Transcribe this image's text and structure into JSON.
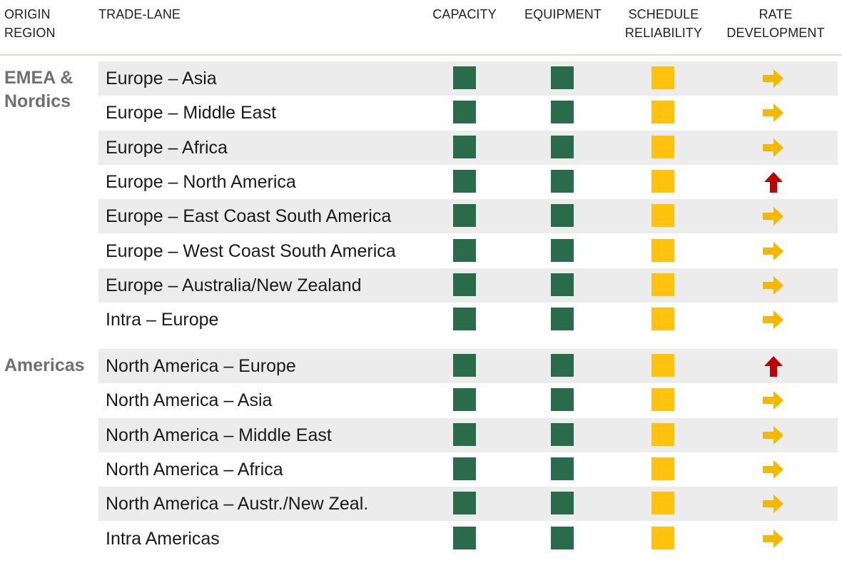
{
  "header": {
    "origin_region": "ORIGIN\nREGION",
    "trade_lane": "TRADE-LANE",
    "capacity": "CAPACITY",
    "equipment": "EQUIPMENT",
    "schedule_reliability": "SCHEDULE\nRELIABILITY",
    "rate_development": "RATE\nDEVELOPMENT"
  },
  "colors": {
    "green": "#2a6b4c",
    "amber": "#ffc20e",
    "arrow_right": "#f5b800",
    "arrow_up": "#c00000",
    "row_shade": "#ececec"
  },
  "groups": [
    {
      "region": "EMEA &\nNordics",
      "rows": [
        {
          "lane": "Europe – Asia",
          "capacity": "green",
          "equipment": "green",
          "schedule_reliability": "amber",
          "rate_development": "right"
        },
        {
          "lane": "Europe – Middle East",
          "capacity": "green",
          "equipment": "green",
          "schedule_reliability": "amber",
          "rate_development": "right"
        },
        {
          "lane": "Europe – Africa",
          "capacity": "green",
          "equipment": "green",
          "schedule_reliability": "amber",
          "rate_development": "right"
        },
        {
          "lane": "Europe – North America",
          "capacity": "green",
          "equipment": "green",
          "schedule_reliability": "amber",
          "rate_development": "up"
        },
        {
          "lane": "Europe – East Coast South America",
          "capacity": "green",
          "equipment": "green",
          "schedule_reliability": "amber",
          "rate_development": "right"
        },
        {
          "lane": "Europe – West Coast South America",
          "capacity": "green",
          "equipment": "green",
          "schedule_reliability": "amber",
          "rate_development": "right"
        },
        {
          "lane": "Europe – Australia/New Zealand",
          "capacity": "green",
          "equipment": "green",
          "schedule_reliability": "amber",
          "rate_development": "right"
        },
        {
          "lane": "Intra – Europe",
          "capacity": "green",
          "equipment": "green",
          "schedule_reliability": "amber",
          "rate_development": "right"
        }
      ]
    },
    {
      "region": "Americas",
      "rows": [
        {
          "lane": "North America – Europe",
          "capacity": "green",
          "equipment": "green",
          "schedule_reliability": "amber",
          "rate_development": "up"
        },
        {
          "lane": "North America – Asia",
          "capacity": "green",
          "equipment": "green",
          "schedule_reliability": "amber",
          "rate_development": "right"
        },
        {
          "lane": "North America – Middle East",
          "capacity": "green",
          "equipment": "green",
          "schedule_reliability": "amber",
          "rate_development": "right"
        },
        {
          "lane": "North America – Africa",
          "capacity": "green",
          "equipment": "green",
          "schedule_reliability": "amber",
          "rate_development": "right"
        },
        {
          "lane": "North America – Austr./New Zeal.",
          "capacity": "green",
          "equipment": "green",
          "schedule_reliability": "amber",
          "rate_development": "right"
        },
        {
          "lane": "Intra Americas",
          "capacity": "green",
          "equipment": "green",
          "schedule_reliability": "amber",
          "rate_development": "right"
        }
      ]
    }
  ]
}
